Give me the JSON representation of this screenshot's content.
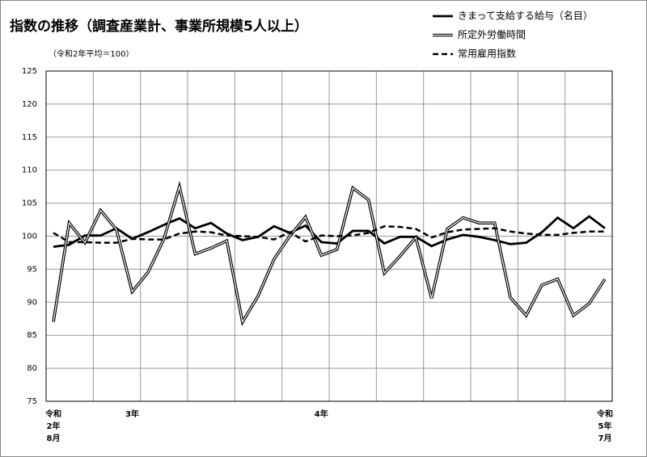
{
  "chart_data": {
    "type": "line",
    "title": "指数の推移（調査産業計、事業所規模5人以上）",
    "subtitle": "（令和2年平均＝100）",
    "categories": [
      "令和2年8月",
      null,
      null,
      null,
      null,
      "3年",
      null,
      null,
      null,
      null,
      null,
      null,
      null,
      null,
      null,
      null,
      null,
      "4年",
      null,
      null,
      null,
      null,
      null,
      null,
      null,
      null,
      null,
      null,
      null,
      null,
      null,
      null,
      null,
      null,
      null,
      "令和5年7月"
    ],
    "series": [
      {
        "name": "きまって支給する給与（名目）",
        "color": "#000000",
        "style": "solid",
        "values": [
          98.4,
          98.7,
          100.1,
          100.1,
          101.2,
          99.6,
          100.6,
          101.7,
          102.7,
          101.2,
          102.0,
          100.4,
          99.4,
          99.9,
          101.5,
          100.5,
          101.6,
          99.1,
          98.9,
          100.8,
          100.8,
          98.9,
          99.9,
          99.9,
          98.5,
          99.5,
          100.2,
          99.9,
          99.4,
          98.8,
          99.0,
          100.6,
          102.8,
          101.2,
          103.0,
          101.2
        ]
      },
      {
        "name": "所定外労働時間",
        "color": "#000000",
        "style": "double",
        "values": [
          87.0,
          102.0,
          99.0,
          103.9,
          101.0,
          91.6,
          94.5,
          99.5,
          107.5,
          97.3,
          98.2,
          99.3,
          87.0,
          91.0,
          96.5,
          100.0,
          102.9,
          97.1,
          98.0,
          107.3,
          105.5,
          94.4,
          97.0,
          99.8,
          90.6,
          101.1,
          102.8,
          102.0,
          102.0,
          90.7,
          88.0,
          92.6,
          93.5,
          88.0,
          89.8,
          93.5
        ]
      },
      {
        "name": "常用雇用指数",
        "color": "#000000",
        "style": "dashed",
        "values": [
          100.5,
          99.1,
          99.1,
          99.0,
          99.0,
          99.6,
          99.5,
          99.5,
          100.4,
          100.7,
          100.6,
          100.1,
          100.0,
          99.9,
          99.5,
          100.6,
          99.2,
          100.1,
          100.0,
          100.1,
          100.5,
          101.5,
          101.4,
          101.1,
          99.8,
          100.6,
          101.0,
          101.1,
          101.2,
          100.7,
          100.4,
          100.2,
          100.2,
          100.5,
          100.7,
          100.7
        ]
      }
    ],
    "ylim": [
      75,
      125
    ],
    "yticks": [
      75,
      80,
      85,
      90,
      95,
      100,
      105,
      110,
      115,
      120,
      125
    ],
    "grid": true
  }
}
